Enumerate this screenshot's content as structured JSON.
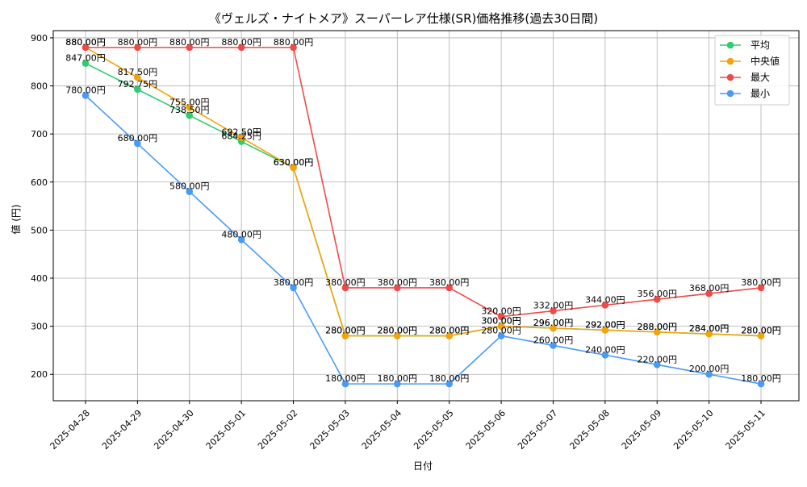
{
  "chart_data": {
    "type": "line",
    "title": "《ヴェルズ・ナイトメア》スーパーレア仕様(SR)価格推移(過去30日間)",
    "xlabel": "日付",
    "ylabel": "値 (円)",
    "ylim": [
      145,
      915
    ],
    "yticks": [
      200,
      300,
      400,
      500,
      600,
      700,
      800,
      900
    ],
    "value_suffix": "円",
    "grid": true,
    "legend_position": "top-right",
    "categories": [
      "2025-04-28",
      "2025-04-29",
      "2025-04-30",
      "2025-05-01",
      "2025-05-02",
      "2025-05-03",
      "2025-05-04",
      "2025-05-05",
      "2025-05-06",
      "2025-05-07",
      "2025-05-08",
      "2025-05-09",
      "2025-05-10",
      "2025-05-11"
    ],
    "series": [
      {
        "name": "平均",
        "color": "#2ecc71",
        "values": [
          847.0,
          792.75,
          738.5,
          684.25,
          630.0,
          280.0,
          280.0,
          280.0,
          300.0,
          296.0,
          292.0,
          288.0,
          284.0,
          280.0
        ]
      },
      {
        "name": "中央値",
        "color": "#f5a30b",
        "values": [
          880.0,
          817.5,
          755.0,
          692.5,
          630.0,
          280.0,
          280.0,
          280.0,
          300.0,
          296.0,
          292.0,
          288.0,
          284.0,
          280.0
        ]
      },
      {
        "name": "最大",
        "color": "#ef4a4a",
        "values": [
          880.0,
          880.0,
          880.0,
          880.0,
          880.0,
          380.0,
          380.0,
          380.0,
          320.0,
          332.0,
          344.0,
          356.0,
          368.0,
          380.0
        ]
      },
      {
        "name": "最小",
        "color": "#4a9af5",
        "values": [
          780.0,
          680.0,
          580.0,
          480.0,
          380.0,
          180.0,
          180.0,
          180.0,
          280.0,
          260.0,
          240.0,
          220.0,
          200.0,
          180.0
        ]
      }
    ]
  }
}
